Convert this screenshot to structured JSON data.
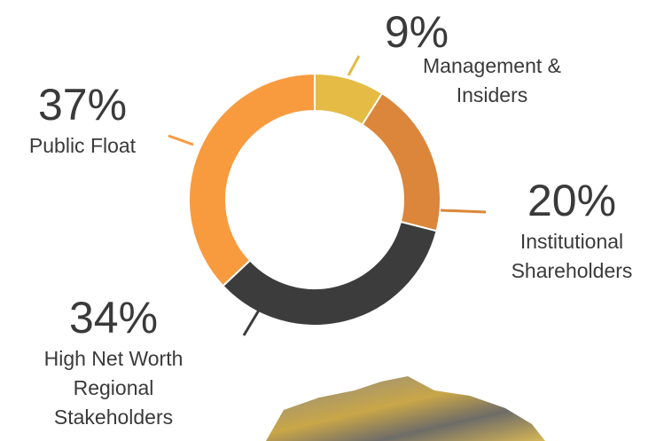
{
  "chart_data": {
    "type": "pie",
    "donut": true,
    "categories": [
      "Management & Insiders",
      "Institutional Shareholders",
      "High Net Worth Regional Stakeholders",
      "Public Float"
    ],
    "values": [
      9,
      20,
      34,
      37
    ],
    "value_labels": [
      "9%",
      "20%",
      "34%",
      "37%"
    ],
    "colors": [
      "#e5bb45",
      "#db863a",
      "#3c3c3c",
      "#f89b3f"
    ]
  }
}
